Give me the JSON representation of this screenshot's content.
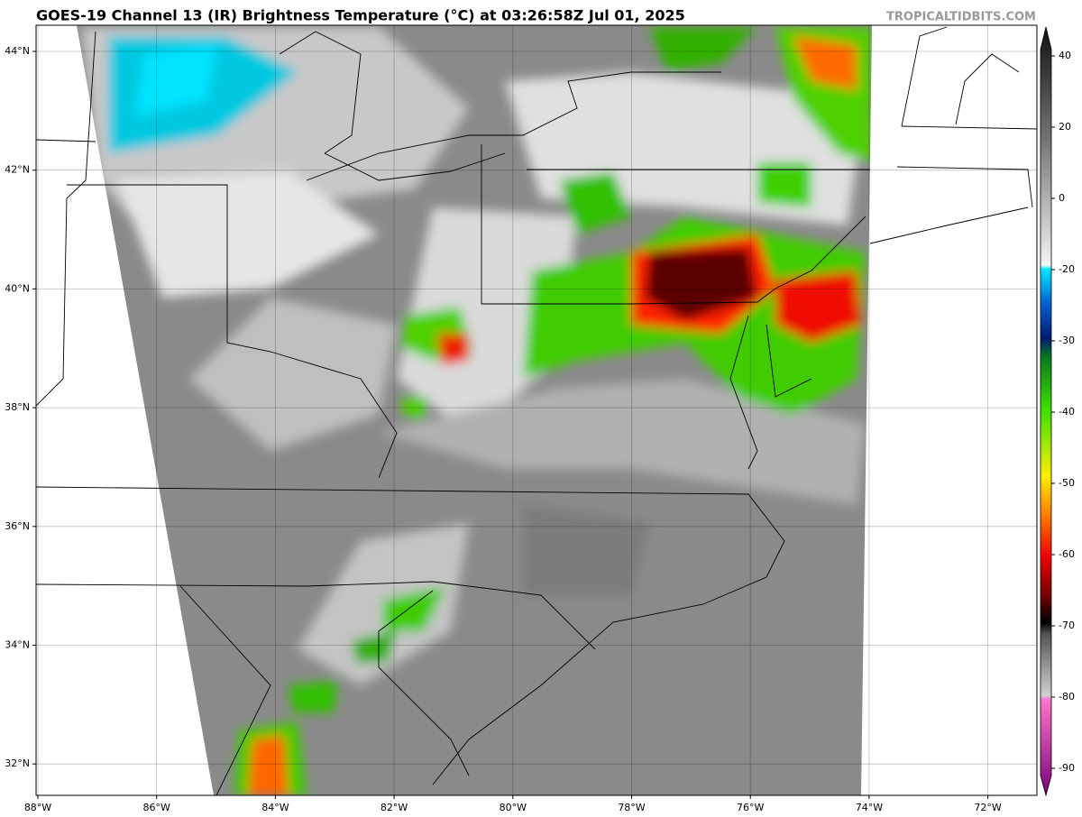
{
  "header": {
    "title": "GOES-19 Channel 13 (IR) Brightness Temperature (°C) at 03:26:58Z Jul 01, 2025",
    "watermark": "TROPICALTIDBITS.COM"
  },
  "map": {
    "lat_labels": [
      "44°N",
      "42°N",
      "40°N",
      "38°N",
      "36°N",
      "34°N",
      "32°N"
    ],
    "lon_labels": [
      "88°W",
      "86°W",
      "84°W",
      "82°W",
      "80°W",
      "78°W",
      "76°W",
      "74°W",
      "72°W"
    ]
  },
  "colorbar": {
    "ticks": [
      40,
      20,
      0,
      -20,
      -30,
      -40,
      -50,
      -60,
      -70,
      -80,
      -90
    ]
  }
}
